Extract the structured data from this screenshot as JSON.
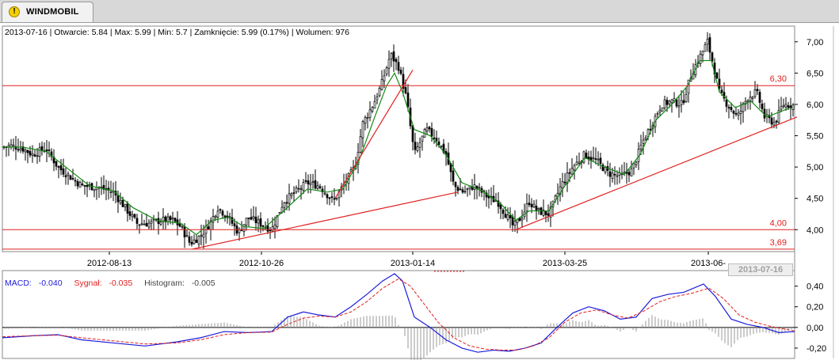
{
  "tab": {
    "title": "WINDMOBIL",
    "icon": "warning-icon"
  },
  "info": {
    "date": "2013-07-16",
    "open_label": "Otwarcie:",
    "open": "5.84",
    "max_label": "Max:",
    "max": "5.99",
    "min_label": "Min:",
    "min": "5.7",
    "close_label": "Zamknięcie:",
    "close": "5.99 (0.17%)",
    "volume_label": "Wolumen:",
    "volume": "976"
  },
  "macd_legend": {
    "macd_label": "MACD:",
    "macd": "-0.040",
    "signal_label": "Sygnał:",
    "signal": "-0.035",
    "hist_label": "Histogram:",
    "hist": "-0.005"
  },
  "current_date_label": "2013-07-16",
  "colors": {
    "candle": "#000000",
    "ma": "#138a13",
    "trendline": "#e02020",
    "macd": "#1b1bdc",
    "signal": "#e02020",
    "histogram": "#9a9a9a"
  },
  "chart_data": [
    {
      "type": "candlestick",
      "ylim": [
        3.65,
        7.25
      ],
      "y_ticks": [
        "7,00",
        "6,50",
        "6,00",
        "5,50",
        "5,00",
        "4,50",
        "4,00"
      ],
      "y_tick_values": [
        7.0,
        6.5,
        6.0,
        5.5,
        5.0,
        4.5,
        4.0
      ],
      "x_labels": [
        "2012-08-13",
        "2012-10-26",
        "2013-01-14",
        "2013-03-25",
        "2013-06-"
      ],
      "horizontal_lines": [
        {
          "value": 6.3,
          "label": "6,30"
        },
        {
          "value": 4.0,
          "label": "4,00"
        },
        {
          "value": 3.69,
          "label": "3,69"
        }
      ],
      "close_series": [
        [
          0,
          5.32
        ],
        [
          12,
          5.34
        ],
        [
          25,
          5.3
        ],
        [
          38,
          5.2
        ],
        [
          55,
          5.3
        ],
        [
          70,
          5.0
        ],
        [
          85,
          4.85
        ],
        [
          100,
          4.7
        ],
        [
          120,
          4.68
        ],
        [
          140,
          4.6
        ],
        [
          155,
          4.35
        ],
        [
          170,
          4.1
        ],
        [
          185,
          4.1
        ],
        [
          200,
          4.15
        ],
        [
          215,
          4.15
        ],
        [
          225,
          4.05
        ],
        [
          237,
          3.78
        ],
        [
          250,
          3.9
        ],
        [
          262,
          4.1
        ],
        [
          272,
          4.35
        ],
        [
          285,
          4.2
        ],
        [
          298,
          3.95
        ],
        [
          310,
          4.2
        ],
        [
          325,
          4.1
        ],
        [
          340,
          4.0
        ],
        [
          355,
          4.45
        ],
        [
          370,
          4.6
        ],
        [
          385,
          4.75
        ],
        [
          400,
          4.7
        ],
        [
          418,
          4.45
        ],
        [
          430,
          4.7
        ],
        [
          445,
          5.0
        ],
        [
          455,
          5.7
        ],
        [
          468,
          6.0
        ],
        [
          478,
          6.3
        ],
        [
          490,
          6.8
        ],
        [
          500,
          6.6
        ],
        [
          510,
          6.1
        ],
        [
          520,
          5.2
        ],
        [
          535,
          5.6
        ],
        [
          548,
          5.45
        ],
        [
          560,
          5.2
        ],
        [
          570,
          4.7
        ],
        [
          582,
          4.6
        ],
        [
          595,
          4.7
        ],
        [
          605,
          4.6
        ],
        [
          615,
          4.5
        ],
        [
          625,
          4.45
        ],
        [
          635,
          4.25
        ],
        [
          645,
          4.05
        ],
        [
          655,
          4.2
        ],
        [
          665,
          4.45
        ],
        [
          675,
          4.3
        ],
        [
          690,
          4.25
        ],
        [
          705,
          4.7
        ],
        [
          720,
          5.0
        ],
        [
          735,
          5.2
        ],
        [
          750,
          5.1
        ],
        [
          765,
          4.9
        ],
        [
          780,
          4.85
        ],
        [
          795,
          4.95
        ],
        [
          808,
          5.4
        ],
        [
          820,
          5.7
        ],
        [
          832,
          6.0
        ],
        [
          845,
          6.05
        ],
        [
          858,
          6.0
        ],
        [
          870,
          6.5
        ],
        [
          882,
          6.8
        ],
        [
          890,
          7.0
        ],
        [
          898,
          6.6
        ],
        [
          905,
          6.2
        ],
        [
          915,
          6.0
        ],
        [
          928,
          5.8
        ],
        [
          940,
          6.1
        ],
        [
          952,
          6.2
        ],
        [
          962,
          5.8
        ],
        [
          975,
          5.7
        ],
        [
          985,
          6.0
        ],
        [
          995,
          5.99
        ]
      ],
      "ma_series": [
        [
          0,
          5.32
        ],
        [
          25,
          5.32
        ],
        [
          55,
          5.25
        ],
        [
          85,
          4.95
        ],
        [
          110,
          4.7
        ],
        [
          140,
          4.62
        ],
        [
          165,
          4.35
        ],
        [
          195,
          4.15
        ],
        [
          225,
          4.1
        ],
        [
          245,
          3.92
        ],
        [
          265,
          4.15
        ],
        [
          285,
          4.2
        ],
        [
          305,
          4.05
        ],
        [
          330,
          4.02
        ],
        [
          355,
          4.3
        ],
        [
          385,
          4.65
        ],
        [
          410,
          4.6
        ],
        [
          430,
          4.65
        ],
        [
          450,
          5.1
        ],
        [
          470,
          5.8
        ],
        [
          485,
          6.3
        ],
        [
          495,
          6.5
        ],
        [
          505,
          6.2
        ],
        [
          520,
          5.6
        ],
        [
          540,
          5.5
        ],
        [
          560,
          5.2
        ],
        [
          580,
          4.75
        ],
        [
          605,
          4.62
        ],
        [
          630,
          4.4
        ],
        [
          648,
          4.15
        ],
        [
          665,
          4.3
        ],
        [
          690,
          4.3
        ],
        [
          710,
          4.7
        ],
        [
          735,
          5.15
        ],
        [
          760,
          5.0
        ],
        [
          785,
          4.88
        ],
        [
          805,
          5.2
        ],
        [
          825,
          5.75
        ],
        [
          845,
          6.0
        ],
        [
          865,
          6.3
        ],
        [
          880,
          6.7
        ],
        [
          895,
          6.7
        ],
        [
          905,
          6.2
        ],
        [
          925,
          5.95
        ],
        [
          945,
          6.05
        ],
        [
          965,
          5.8
        ],
        [
          995,
          5.95
        ]
      ],
      "trendlines": [
        {
          "from": [
            240,
            3.69
          ],
          "to": [
            575,
            4.6
          ]
        },
        {
          "from": [
            420,
            4.5
          ],
          "to": [
            518,
            6.55
          ]
        },
        {
          "from": [
            648,
            4.0
          ],
          "to": [
            1003,
            5.8
          ]
        }
      ]
    },
    {
      "type": "line",
      "ylim": [
        -0.3,
        0.55
      ],
      "y_ticks": [
        "0,40",
        "0,20",
        "0,00",
        "-0,20"
      ],
      "y_tick_values": [
        0.4,
        0.2,
        0.0,
        -0.2
      ],
      "series": [
        {
          "name": "MACD",
          "values": [
            [
              0,
              -0.1
            ],
            [
              40,
              -0.08
            ],
            [
              70,
              -0.07
            ],
            [
              100,
              -0.12
            ],
            [
              140,
              -0.15
            ],
            [
              180,
              -0.18
            ],
            [
              220,
              -0.14
            ],
            [
              250,
              -0.1
            ],
            [
              280,
              -0.04
            ],
            [
              310,
              -0.05
            ],
            [
              340,
              -0.04
            ],
            [
              360,
              0.1
            ],
            [
              380,
              0.15
            ],
            [
              400,
              0.12
            ],
            [
              420,
              0.1
            ],
            [
              440,
              0.2
            ],
            [
              460,
              0.32
            ],
            [
              480,
              0.45
            ],
            [
              495,
              0.52
            ],
            [
              505,
              0.45
            ],
            [
              520,
              0.1
            ],
            [
              540,
              0.0
            ],
            [
              560,
              -0.12
            ],
            [
              580,
              -0.2
            ],
            [
              600,
              -0.24
            ],
            [
              620,
              -0.22
            ],
            [
              640,
              -0.23
            ],
            [
              660,
              -0.2
            ],
            [
              680,
              -0.15
            ],
            [
              700,
              0.0
            ],
            [
              720,
              0.14
            ],
            [
              740,
              0.2
            ],
            [
              760,
              0.16
            ],
            [
              780,
              0.08
            ],
            [
              800,
              0.1
            ],
            [
              820,
              0.28
            ],
            [
              840,
              0.32
            ],
            [
              860,
              0.34
            ],
            [
              885,
              0.42
            ],
            [
              900,
              0.3
            ],
            [
              920,
              0.08
            ],
            [
              940,
              0.03
            ],
            [
              960,
              0.0
            ],
            [
              980,
              -0.05
            ],
            [
              1000,
              -0.04
            ]
          ]
        },
        {
          "name": "Sygnał",
          "values": [
            [
              0,
              -0.09
            ],
            [
              40,
              -0.08
            ],
            [
              70,
              -0.075
            ],
            [
              100,
              -0.1
            ],
            [
              140,
              -0.13
            ],
            [
              180,
              -0.16
            ],
            [
              220,
              -0.15
            ],
            [
              250,
              -0.12
            ],
            [
              280,
              -0.07
            ],
            [
              310,
              -0.05
            ],
            [
              340,
              -0.045
            ],
            [
              360,
              0.03
            ],
            [
              380,
              0.09
            ],
            [
              400,
              0.11
            ],
            [
              420,
              0.1
            ],
            [
              440,
              0.15
            ],
            [
              460,
              0.25
            ],
            [
              480,
              0.38
            ],
            [
              500,
              0.47
            ],
            [
              515,
              0.4
            ],
            [
              530,
              0.25
            ],
            [
              550,
              0.05
            ],
            [
              570,
              -0.1
            ],
            [
              590,
              -0.18
            ],
            [
              610,
              -0.21
            ],
            [
              630,
              -0.22
            ],
            [
              650,
              -0.22
            ],
            [
              670,
              -0.18
            ],
            [
              690,
              -0.1
            ],
            [
              710,
              0.05
            ],
            [
              730,
              0.14
            ],
            [
              750,
              0.17
            ],
            [
              770,
              0.12
            ],
            [
              790,
              0.09
            ],
            [
              810,
              0.16
            ],
            [
              830,
              0.25
            ],
            [
              850,
              0.3
            ],
            [
              870,
              0.33
            ],
            [
              892,
              0.38
            ],
            [
              910,
              0.28
            ],
            [
              930,
              0.12
            ],
            [
              950,
              0.05
            ],
            [
              970,
              0.01
            ],
            [
              1000,
              -0.035
            ]
          ]
        }
      ]
    }
  ]
}
